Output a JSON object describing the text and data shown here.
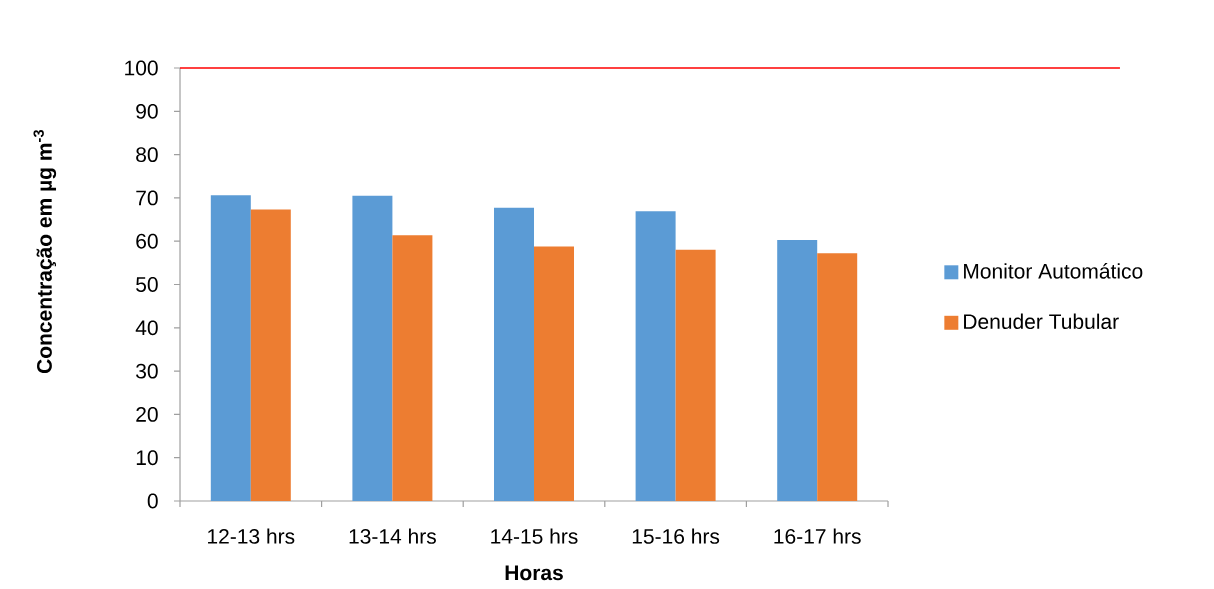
{
  "chart_data": {
    "type": "bar",
    "xlabel": "Horas",
    "ylabel": "Concentração em µg m$^{-3}$",
    "categories": [
      "12-13 hrs",
      "13-14 hrs",
      "14-15 hrs",
      "15-16 hrs",
      "16-17 hrs"
    ],
    "series": [
      {
        "name": "Monitor Automático",
        "color": "#5b9bd5",
        "values": [
          70.6,
          70.5,
          67.7,
          66.9,
          60.3
        ]
      },
      {
        "name": "Denuder Tubular",
        "color": "#ed7d31",
        "values": [
          67.3,
          61.4,
          58.8,
          58.0,
          57.2
        ]
      }
    ],
    "ylim": [
      0,
      100
    ],
    "yticks": [
      0,
      10,
      20,
      30,
      40,
      50,
      60,
      70,
      80,
      90,
      100
    ],
    "legend": "right",
    "ref_lines": [
      {
        "axis": "y",
        "value": 100,
        "color": "#ff0000"
      }
    ]
  }
}
